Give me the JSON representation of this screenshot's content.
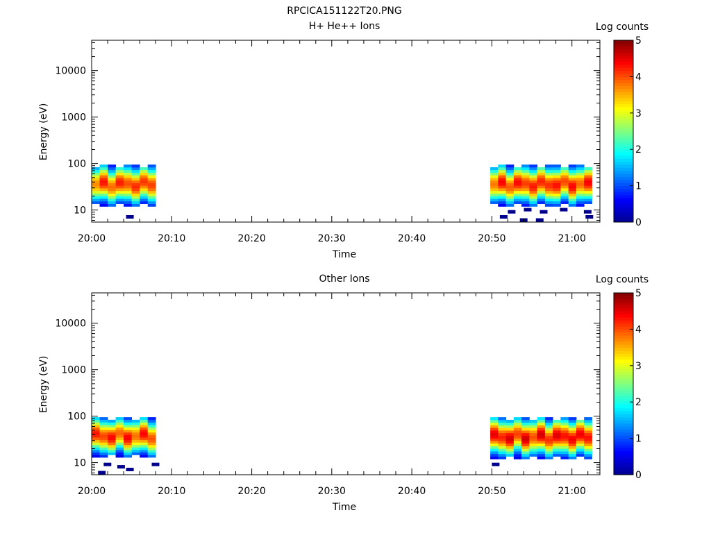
{
  "figure_title": "RPCICA151122T20.PNG",
  "colors": {
    "colormap": [
      "#00008f",
      "#0000ff",
      "#0080ff",
      "#00ffff",
      "#80ff80",
      "#ffff00",
      "#ff8000",
      "#ff0000",
      "#800000"
    ],
    "background": "#ffffff",
    "axes": "#000000"
  },
  "chart_data": [
    {
      "type": "heatmap",
      "title": "H+ He++ Ions",
      "xlabel": "Time",
      "ylabel": "Energy (eV)",
      "colorbar_label": "Log counts",
      "colorbar_ticks": [
        "0",
        "1",
        "2",
        "3",
        "4",
        "5"
      ],
      "colorbar_range": [
        0,
        5
      ],
      "x_ticks": [
        "20:00",
        "20:10",
        "20:20",
        "20:30",
        "20:40",
        "20:50",
        "21:00"
      ],
      "y_ticks": [
        "10",
        "100",
        "1000",
        "10000"
      ],
      "y_scale": "log",
      "y_range_ev": [
        5.5,
        45000
      ],
      "x_range_min": [
        0,
        63.5
      ],
      "blocks": [
        {
          "t_start_min": 0.0,
          "t_end_min": 8.0,
          "e_low_ev": 12,
          "e_high_ev": 95,
          "peak_log_counts": 4.3
        },
        {
          "t_start_min": 49.8,
          "t_end_min": 62.5,
          "e_low_ev": 12,
          "e_high_ev": 95,
          "peak_log_counts": 4.4
        }
      ],
      "sparse_low_energy_bins": [
        {
          "t_min": 4.3,
          "e_ev": 7
        },
        {
          "t_min": 51.0,
          "e_ev": 7
        },
        {
          "t_min": 52.0,
          "e_ev": 9
        },
        {
          "t_min": 53.5,
          "e_ev": 6
        },
        {
          "t_min": 54.0,
          "e_ev": 10
        },
        {
          "t_min": 55.5,
          "e_ev": 6
        },
        {
          "t_min": 56.0,
          "e_ev": 9
        },
        {
          "t_min": 58.5,
          "e_ev": 10
        },
        {
          "t_min": 61.5,
          "e_ev": 9
        },
        {
          "t_min": 61.7,
          "e_ev": 7
        }
      ]
    },
    {
      "type": "heatmap",
      "title": "Other Ions",
      "xlabel": "Time",
      "ylabel": "Energy (eV)",
      "colorbar_label": "Log counts",
      "colorbar_ticks": [
        "0",
        "1",
        "2",
        "3",
        "4",
        "5"
      ],
      "colorbar_range": [
        0,
        5
      ],
      "x_ticks": [
        "20:00",
        "20:10",
        "20:20",
        "20:30",
        "20:40",
        "20:50",
        "21:00"
      ],
      "y_ticks": [
        "10",
        "100",
        "1000",
        "10000"
      ],
      "y_scale": "log",
      "y_range_ev": [
        5.5,
        45000
      ],
      "x_range_min": [
        0,
        63.5
      ],
      "blocks": [
        {
          "t_start_min": 0.0,
          "t_end_min": 8.0,
          "e_low_ev": 13,
          "e_high_ev": 95,
          "peak_log_counts": 4.4
        },
        {
          "t_start_min": 49.8,
          "t_end_min": 62.5,
          "e_low_ev": 12,
          "e_high_ev": 95,
          "peak_log_counts": 4.6
        }
      ],
      "sparse_low_energy_bins": [
        {
          "t_min": 0.8,
          "e_ev": 6
        },
        {
          "t_min": 1.5,
          "e_ev": 9
        },
        {
          "t_min": 3.2,
          "e_ev": 8
        },
        {
          "t_min": 4.3,
          "e_ev": 7
        },
        {
          "t_min": 7.5,
          "e_ev": 9
        },
        {
          "t_min": 50.0,
          "e_ev": 9
        }
      ]
    }
  ]
}
